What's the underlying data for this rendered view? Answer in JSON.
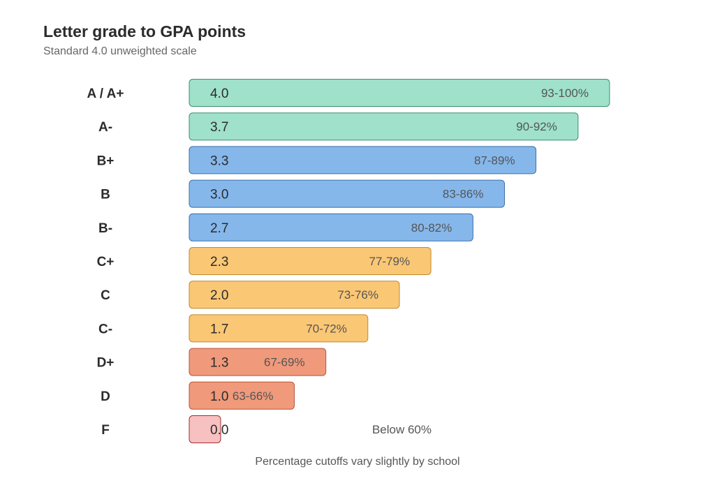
{
  "chart_data": {
    "type": "bar",
    "orientation": "horizontal",
    "title": "Letter grade to GPA points",
    "subtitle": "Standard 4.0 unweighted scale",
    "footnote": "Percentage cutoffs vary slightly by school",
    "xlim": [
      0,
      4.0
    ],
    "grid": false,
    "categories": [
      "A / A+",
      "A-",
      "B+",
      "B",
      "B-",
      "C+",
      "C",
      "C-",
      "D+",
      "D",
      "F"
    ],
    "values": [
      4.0,
      3.7,
      3.3,
      3.0,
      2.7,
      2.3,
      2.0,
      1.7,
      1.3,
      1.0,
      0
    ],
    "value_labels": [
      "4.0",
      "3.7",
      "3.3",
      "3.0",
      "2.7",
      "2.3",
      "2.0",
      "1.7",
      "1.3",
      "1.0",
      "0.0"
    ],
    "ranges": [
      "93-100%",
      "90-92%",
      "87-89%",
      "83-86%",
      "80-82%",
      "77-79%",
      "73-76%",
      "70-72%",
      "67-69%",
      "63-66%",
      "Below 60%"
    ],
    "groups": [
      "A",
      "A",
      "B",
      "B",
      "B",
      "C",
      "C",
      "C",
      "D",
      "D",
      "F"
    ],
    "colors": {
      "A": {
        "fill": "#9fe1cb",
        "stroke": "#3f8f6c"
      },
      "B": {
        "fill": "#85b7eb",
        "stroke": "#3d6fa8"
      },
      "C": {
        "fill": "#fac775",
        "stroke": "#bf8a2c"
      },
      "D": {
        "fill": "#f0997b",
        "stroke": "#b7553a"
      },
      "F": {
        "fill": "#f7c1c1",
        "stroke": "#a32d2d"
      }
    }
  }
}
